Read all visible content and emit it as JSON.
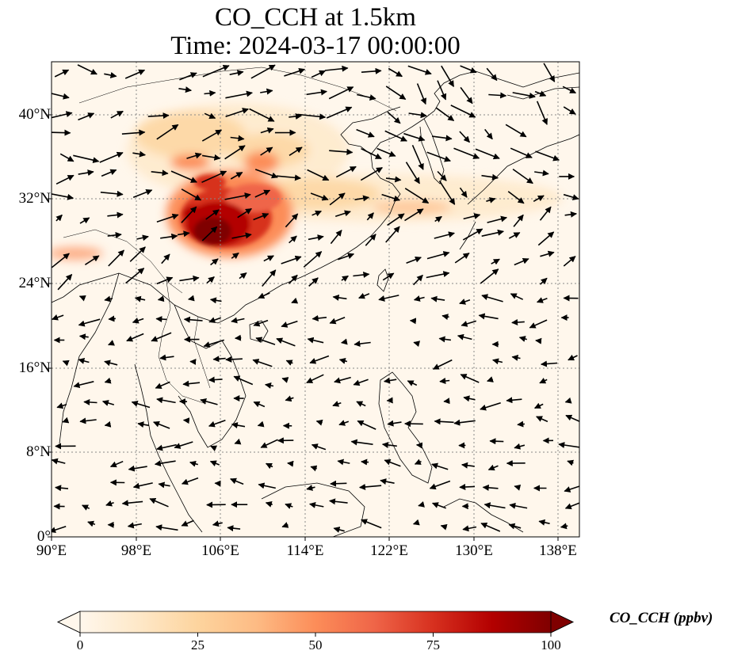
{
  "title": {
    "line1": "CO_CCH at 1.5km",
    "line2": "Time: 2024-03-17 00:00:00"
  },
  "map": {
    "type": "geographic contour map with wind vectors",
    "variable": "CO_CCH",
    "level": "1.5km",
    "lon_range": [
      90,
      140
    ],
    "lat_range": [
      0,
      45
    ],
    "lon_ticks": [
      "90°E",
      "98°E",
      "106°E",
      "114°E",
      "122°E",
      "130°E",
      "138°E"
    ],
    "lat_ticks": [
      "0°",
      "8°N",
      "16°N",
      "24°N",
      "32°N",
      "40°N"
    ],
    "gridlines": "dotted gray",
    "plume": "highest concentration over Sichuan Basin near 28–32°N, 103–108°E; secondary plume along 31°N eastward to ~130°E",
    "vectors": "wind arrows, westerly in the north, easterly trades in the south"
  },
  "colorbar": {
    "label": "CO_CCH (ppbv)",
    "ticks": [
      "0",
      "25",
      "50",
      "75",
      "100"
    ],
    "range": [
      0,
      100
    ],
    "colormap": "OrRd",
    "extend": "both",
    "colors": [
      "#fff7ec",
      "#fee8c8",
      "#fdd49e",
      "#fdbb84",
      "#fc8d59",
      "#ef6548",
      "#d7301f",
      "#b30000",
      "#7f0000"
    ]
  }
}
